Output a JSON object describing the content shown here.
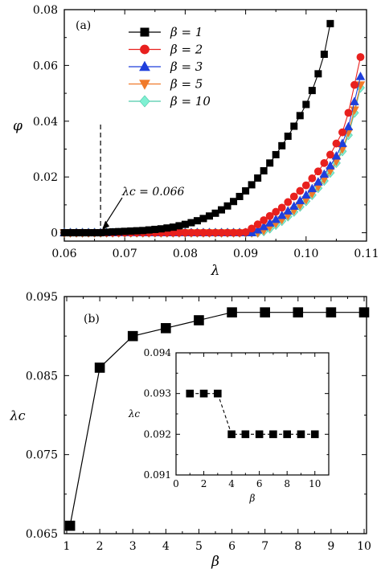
{
  "chart_data": [
    {
      "type": "line",
      "panel_label": "(a)",
      "xlabel": "λ",
      "ylabel": "φ",
      "xlim": [
        0.06,
        0.11
      ],
      "ylim": [
        -0.003,
        0.08
      ],
      "x_ticks": [
        "0.06",
        "0.07",
        "0.08",
        "0.09",
        "0.10",
        "0.11"
      ],
      "y_ticks": [
        "0",
        "0.02",
        "0.04",
        "0.06",
        "0.08"
      ],
      "annotation": {
        "text": "λc = 0.066",
        "x": 0.066,
        "y": 0.0,
        "dashed_vertical_line_at": 0.066
      },
      "legend_position": "top-center",
      "series": [
        {
          "name": "β = 1",
          "color": "#000000",
          "marker": "square",
          "x": [
            0.06,
            0.061,
            0.062,
            0.063,
            0.064,
            0.065,
            0.066,
            0.067,
            0.068,
            0.069,
            0.07,
            0.071,
            0.072,
            0.073,
            0.074,
            0.075,
            0.076,
            0.077,
            0.078,
            0.079,
            0.08,
            0.081,
            0.082,
            0.083,
            0.084,
            0.085,
            0.086,
            0.087,
            0.088,
            0.089,
            0.09,
            0.091,
            0.092,
            0.093,
            0.094,
            0.095,
            0.096,
            0.097,
            0.098,
            0.099,
            0.1,
            0.101,
            0.102,
            0.103,
            0.104
          ],
          "y": [
            0.0,
            0.0,
            0.0,
            0.0,
            0.0,
            0.0,
            0.0,
            0.0002,
            0.0003,
            0.0004,
            0.0005,
            0.0006,
            0.0007,
            0.0008,
            0.001,
            0.0012,
            0.0014,
            0.0017,
            0.002,
            0.0025,
            0.003,
            0.0036,
            0.0043,
            0.0051,
            0.006,
            0.007,
            0.0082,
            0.0096,
            0.0112,
            0.013,
            0.015,
            0.0172,
            0.0196,
            0.0222,
            0.025,
            0.028,
            0.0312,
            0.0346,
            0.0382,
            0.042,
            0.046,
            0.051,
            0.057,
            0.064,
            0.075
          ]
        },
        {
          "name": "β = 2",
          "color": "#e8201e",
          "marker": "circle",
          "x": [
            0.06,
            0.061,
            0.062,
            0.063,
            0.064,
            0.065,
            0.066,
            0.067,
            0.068,
            0.069,
            0.07,
            0.071,
            0.072,
            0.073,
            0.074,
            0.075,
            0.076,
            0.077,
            0.078,
            0.079,
            0.08,
            0.081,
            0.082,
            0.083,
            0.084,
            0.085,
            0.086,
            0.087,
            0.088,
            0.089,
            0.09,
            0.091,
            0.092,
            0.093,
            0.094,
            0.095,
            0.096,
            0.097,
            0.098,
            0.099,
            0.1,
            0.101,
            0.102,
            0.103,
            0.104,
            0.105,
            0.106,
            0.107,
            0.108,
            0.109
          ],
          "y": [
            0.0,
            0.0,
            0.0,
            0.0,
            0.0,
            0.0,
            0.0,
            0.0,
            0.0,
            0.0,
            0.0,
            0.0,
            0.0,
            0.0,
            0.0,
            0.0,
            0.0,
            0.0,
            0.0,
            0.0,
            0.0,
            0.0,
            0.0,
            0.0,
            0.0,
            0.0,
            0.0,
            0.0,
            0.0,
            0.0,
            0.0002,
            0.0015,
            0.003,
            0.0045,
            0.006,
            0.0075,
            0.009,
            0.011,
            0.013,
            0.015,
            0.017,
            0.0195,
            0.022,
            0.025,
            0.028,
            0.032,
            0.036,
            0.043,
            0.053,
            0.063
          ]
        },
        {
          "name": "β = 3",
          "color": "#1f3fdc",
          "marker": "triangle-up",
          "x": [
            0.06,
            0.061,
            0.062,
            0.063,
            0.064,
            0.065,
            0.066,
            0.067,
            0.068,
            0.069,
            0.07,
            0.071,
            0.072,
            0.073,
            0.074,
            0.075,
            0.076,
            0.077,
            0.078,
            0.079,
            0.08,
            0.081,
            0.082,
            0.083,
            0.084,
            0.085,
            0.086,
            0.087,
            0.088,
            0.089,
            0.09,
            0.091,
            0.092,
            0.093,
            0.094,
            0.095,
            0.096,
            0.097,
            0.098,
            0.099,
            0.1,
            0.101,
            0.102,
            0.103,
            0.104,
            0.105,
            0.106,
            0.107,
            0.108,
            0.109
          ],
          "y": [
            0.0,
            0.0,
            0.0,
            0.0,
            0.0,
            0.0,
            0.0,
            0.0,
            0.0,
            0.0,
            0.0,
            0.0,
            0.0,
            0.0,
            0.0,
            0.0,
            0.0,
            0.0,
            0.0,
            0.0,
            0.0,
            0.0,
            0.0,
            0.0,
            0.0,
            0.0,
            0.0,
            0.0,
            0.0,
            0.0,
            0.0,
            0.0,
            0.001,
            0.0022,
            0.0035,
            0.0048,
            0.0062,
            0.0078,
            0.0095,
            0.0115,
            0.0135,
            0.0158,
            0.0182,
            0.021,
            0.024,
            0.0275,
            0.032,
            0.038,
            0.047,
            0.056
          ]
        },
        {
          "name": "β = 5",
          "color": "#f07a2a",
          "marker": "triangle-down",
          "x": [
            0.06,
            0.061,
            0.062,
            0.063,
            0.064,
            0.065,
            0.066,
            0.067,
            0.068,
            0.069,
            0.07,
            0.071,
            0.072,
            0.073,
            0.074,
            0.075,
            0.076,
            0.077,
            0.078,
            0.079,
            0.08,
            0.081,
            0.082,
            0.083,
            0.084,
            0.085,
            0.086,
            0.087,
            0.088,
            0.089,
            0.09,
            0.091,
            0.092,
            0.093,
            0.094,
            0.095,
            0.096,
            0.097,
            0.098,
            0.099,
            0.1,
            0.101,
            0.102,
            0.103,
            0.104,
            0.105,
            0.106,
            0.107,
            0.108,
            0.109
          ],
          "y": [
            0.0,
            0.0,
            0.0,
            0.0,
            0.0,
            0.0,
            0.0,
            0.0,
            0.0,
            0.0,
            0.0,
            0.0,
            0.0,
            0.0,
            0.0,
            0.0,
            0.0,
            0.0,
            0.0,
            0.0,
            0.0,
            0.0,
            0.0,
            0.0,
            0.0,
            0.0,
            0.0,
            0.0,
            0.0,
            0.0,
            0.0,
            0.0,
            0.0,
            0.0008,
            0.002,
            0.0033,
            0.0047,
            0.0062,
            0.008,
            0.0098,
            0.0118,
            0.014,
            0.0165,
            0.0192,
            0.0222,
            0.0256,
            0.03,
            0.036,
            0.044,
            0.053
          ]
        },
        {
          "name": "β = 10",
          "color": "#7ff0d2",
          "marker": "diamond",
          "x": [
            0.06,
            0.061,
            0.062,
            0.063,
            0.064,
            0.065,
            0.066,
            0.067,
            0.068,
            0.069,
            0.07,
            0.071,
            0.072,
            0.073,
            0.074,
            0.075,
            0.076,
            0.077,
            0.078,
            0.079,
            0.08,
            0.081,
            0.082,
            0.083,
            0.084,
            0.085,
            0.086,
            0.087,
            0.088,
            0.089,
            0.09,
            0.091,
            0.092,
            0.093,
            0.094,
            0.095,
            0.096,
            0.097,
            0.098,
            0.099,
            0.1,
            0.101,
            0.102,
            0.103,
            0.104,
            0.105,
            0.106,
            0.107,
            0.108,
            0.109
          ],
          "y": [
            0.0,
            0.0,
            0.0,
            0.0,
            0.0,
            0.0,
            0.0,
            0.0,
            0.0,
            0.0,
            0.0,
            0.0,
            0.0,
            0.0,
            0.0,
            0.0,
            0.0,
            0.0,
            0.0,
            0.0,
            0.0,
            0.0,
            0.0,
            0.0,
            0.0,
            0.0,
            0.0,
            0.0,
            0.0,
            0.0,
            0.0,
            0.0,
            0.0,
            0.0005,
            0.0015,
            0.0028,
            0.0042,
            0.0058,
            0.0075,
            0.0093,
            0.0113,
            0.0135,
            0.016,
            0.0186,
            0.0215,
            0.025,
            0.0292,
            0.035,
            0.043,
            0.052
          ]
        }
      ]
    },
    {
      "type": "line",
      "panel_label": "(b)",
      "xlabel": "β",
      "ylabel": "λc",
      "xlim": [
        1,
        10
      ],
      "ylim": [
        0.065,
        0.095
      ],
      "x_ticks": [
        "1",
        "2",
        "3",
        "4",
        "5",
        "6",
        "7",
        "8",
        "9",
        "10"
      ],
      "y_ticks": [
        "0.065",
        "0.075",
        "0.085",
        "0.095"
      ],
      "series": [
        {
          "color": "#000000",
          "marker": "square",
          "x": [
            1.1,
            2,
            3,
            4,
            5,
            6,
            7,
            8,
            9,
            10
          ],
          "y": [
            0.066,
            0.086,
            0.09,
            0.091,
            0.092,
            0.093,
            0.093,
            0.093,
            0.093,
            0.093
          ]
        }
      ]
    },
    {
      "type": "line",
      "role": "inset of panel (b)",
      "xlabel": "β",
      "ylabel": "λc",
      "xlim": [
        0,
        11
      ],
      "ylim": [
        0.091,
        0.094
      ],
      "x_ticks": [
        "0",
        "2",
        "4",
        "6",
        "8",
        "10"
      ],
      "y_ticks": [
        "0.091",
        "0.092",
        "0.093",
        "0.094"
      ],
      "series": [
        {
          "color": "#000000",
          "marker": "square",
          "line_style": "dashed",
          "x": [
            1,
            2,
            3,
            4,
            5,
            6,
            7,
            8,
            9,
            10
          ],
          "y": [
            0.093,
            0.093,
            0.093,
            0.092,
            0.092,
            0.092,
            0.092,
            0.092,
            0.092,
            0.092
          ]
        }
      ]
    }
  ]
}
